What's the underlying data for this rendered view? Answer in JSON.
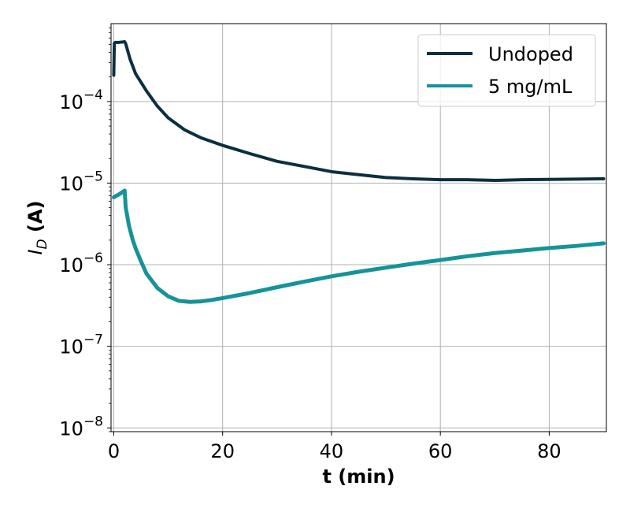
{
  "chart_data": {
    "type": "line",
    "xlabel": "t (min)",
    "ylabel_main": "I",
    "ylabel_sub": "D",
    "ylabel_unit": " (A)",
    "xlim": [
      -0.5,
      90.5
    ],
    "ylim": [
      9e-09,
      0.0009
    ],
    "yscale": "log",
    "grid": true,
    "legend_position": "top-right",
    "x_ticks": [
      0,
      20,
      40,
      60,
      80
    ],
    "x_tick_labels": [
      "0",
      "20",
      "40",
      "60",
      "80"
    ],
    "y_ticks": [
      1e-08,
      1e-07,
      1e-06,
      1e-05,
      0.0001
    ],
    "y_tick_labels": [
      {
        "base": "10",
        "exp": "−8"
      },
      {
        "base": "10",
        "exp": "−7"
      },
      {
        "base": "10",
        "exp": "−6"
      },
      {
        "base": "10",
        "exp": "−5"
      },
      {
        "base": "10",
        "exp": "−4"
      }
    ],
    "series": [
      {
        "name": "Undoped",
        "color": "#0b2f40",
        "x": [
          0,
          0.1,
          0.3,
          1,
          2,
          2.2,
          3,
          4,
          6,
          8,
          10,
          13,
          16,
          20,
          25,
          30,
          35,
          40,
          45,
          50,
          55,
          60,
          65,
          70,
          75,
          80,
          85,
          90
        ],
        "y": [
          0.00021,
          0.00052,
          0.00053,
          0.00053,
          0.00054,
          0.00051,
          0.00033,
          0.00022,
          0.000135,
          8.8e-05,
          6.3e-05,
          4.5e-05,
          3.6e-05,
          2.9e-05,
          2.3e-05,
          1.85e-05,
          1.6e-05,
          1.38e-05,
          1.27e-05,
          1.17e-05,
          1.13e-05,
          1.1e-05,
          1.1e-05,
          1.08e-05,
          1.1e-05,
          1.11e-05,
          1.12e-05,
          1.13e-05
        ]
      },
      {
        "name": "5 mg/mL",
        "color": "#16939a",
        "x": [
          0,
          1,
          2,
          2.2,
          2.8,
          3.5,
          4,
          5,
          6,
          8,
          10,
          12,
          14,
          16,
          18,
          20,
          25,
          30,
          35,
          40,
          45,
          50,
          55,
          60,
          65,
          70,
          75,
          80,
          85,
          90
        ],
        "y": [
          6.7e-06,
          7.3e-06,
          8.1e-06,
          5e-06,
          3e-06,
          2e-06,
          1.6e-06,
          1.1e-06,
          7.8e-07,
          5.2e-07,
          4.1e-07,
          3.6e-07,
          3.5e-07,
          3.55e-07,
          3.7e-07,
          3.9e-07,
          4.5e-07,
          5.3e-07,
          6.2e-07,
          7.2e-07,
          8.2e-07,
          9.2e-07,
          1.03e-06,
          1.14e-06,
          1.27e-06,
          1.39e-06,
          1.49e-06,
          1.6e-06,
          1.7e-06,
          1.83e-06
        ]
      }
    ]
  }
}
